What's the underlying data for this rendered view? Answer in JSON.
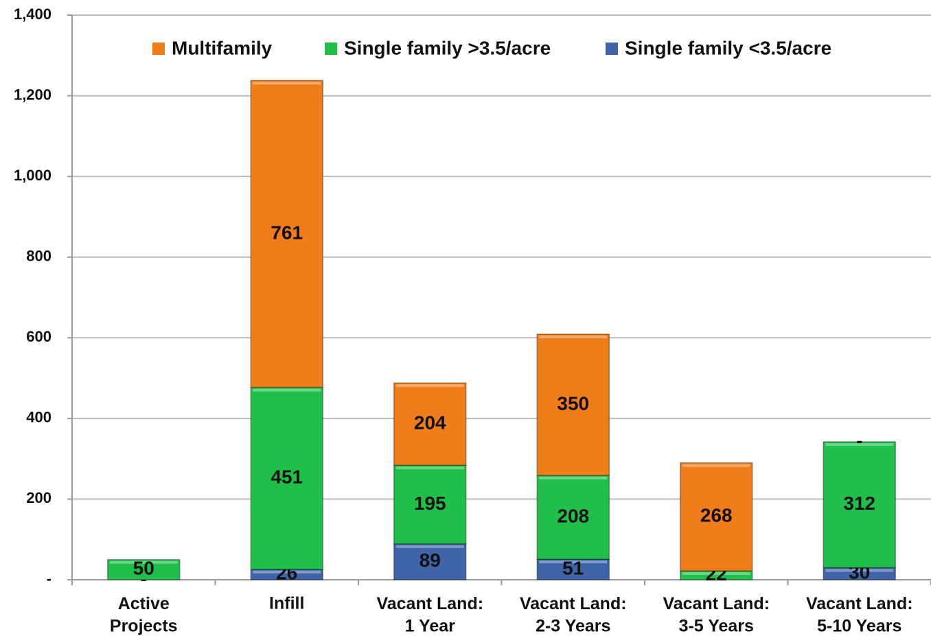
{
  "chart_data": {
    "type": "stacked_bar",
    "categories": [
      "Active\nProjects",
      "Infill",
      "Vacant Land:\n1 Year",
      "Vacant Land:\n2-3 Years",
      "Vacant Land:\n3-5 Years",
      "Vacant Land:\n5-10 Years"
    ],
    "series": [
      {
        "name": "Single family <3.5/acre",
        "color": "#3f64a8",
        "values": [
          0,
          26,
          89,
          51,
          null,
          30
        ],
        "value_labels": [
          "-",
          "26",
          "89",
          "51",
          null,
          "30"
        ]
      },
      {
        "name": "Single family >3.5/acre",
        "color": "#1fbf4a",
        "values": [
          50,
          451,
          195,
          208,
          22,
          312
        ]
      },
      {
        "name": "Multifamily",
        "color": "#f07d1a",
        "values": [
          null,
          761,
          204,
          350,
          268,
          0
        ],
        "value_labels": [
          null,
          "761",
          "204",
          "350",
          "268",
          "-"
        ]
      }
    ],
    "legend_order": [
      2,
      1,
      0
    ],
    "ylim": [
      0,
      1400
    ],
    "yticks": [
      {
        "value": 0,
        "label": "-"
      },
      200,
      400,
      600,
      800,
      {
        "value": 1000,
        "label": "1,000"
      },
      {
        "value": 1200,
        "label": "1,200"
      },
      {
        "value": 1400,
        "label": "1,400"
      }
    ],
    "grid": true
  }
}
